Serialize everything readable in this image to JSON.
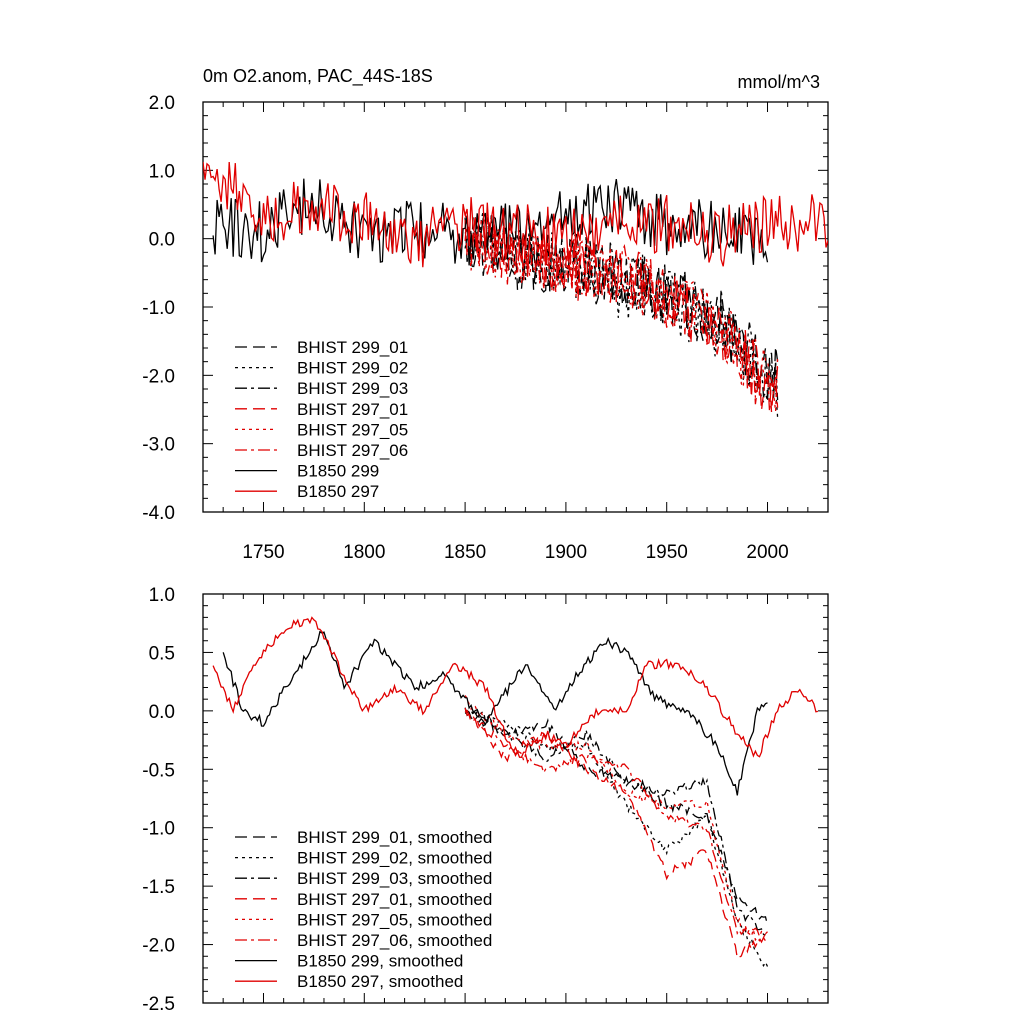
{
  "chart_data": [
    {
      "type": "line",
      "title": "0m O2.anom, PAC_44S-18S",
      "units": "mmol/m^3",
      "xlim": [
        1720,
        2030
      ],
      "ylim": [
        -4.0,
        2.0
      ],
      "xticks": [
        1750,
        1800,
        1850,
        1900,
        1950,
        2000
      ],
      "xtick_labels": [
        "1750",
        "1800",
        "1850",
        "1900",
        "1950",
        "2000"
      ],
      "yticks": [
        2.0,
        1.0,
        0.0,
        -1.0,
        -2.0,
        -3.0,
        -4.0
      ],
      "ytick_labels": [
        "2.0",
        "1.0",
        "0.0",
        "-1.0",
        "-2.0",
        "-3.0",
        "-4.0"
      ],
      "legend_position": "bottom-left",
      "grid": false,
      "series": [
        {
          "name": "BHIST 299_01",
          "color": "#000000",
          "dash": "dash",
          "years": [
            1850,
            1875,
            1900,
            1925,
            1950,
            1975,
            1990,
            2005
          ],
          "values": [
            0.0,
            -0.3,
            -0.4,
            -0.6,
            -0.8,
            -1.2,
            -1.7,
            -2.0
          ]
        },
        {
          "name": "BHIST 299_02",
          "color": "#000000",
          "dash": "dot",
          "years": [
            1850,
            1875,
            1900,
            1925,
            1950,
            1975,
            1990,
            2005
          ],
          "values": [
            0.1,
            -0.2,
            -0.4,
            -0.7,
            -0.9,
            -1.3,
            -1.8,
            -2.2
          ]
        },
        {
          "name": "BHIST 299_03",
          "color": "#000000",
          "dash": "dashdot",
          "years": [
            1850,
            1875,
            1900,
            1925,
            1950,
            1975,
            1990,
            2005
          ],
          "values": [
            0.0,
            -0.2,
            -0.3,
            -0.5,
            -0.8,
            -1.1,
            -1.6,
            -2.1
          ]
        },
        {
          "name": "BHIST 297_01",
          "color": "#e00000",
          "dash": "dash",
          "years": [
            1850,
            1875,
            1900,
            1925,
            1950,
            1975,
            1990,
            2005
          ],
          "values": [
            0.1,
            -0.3,
            -0.5,
            -0.6,
            -0.9,
            -1.3,
            -1.9,
            -2.3
          ]
        },
        {
          "name": "BHIST 297_05",
          "color": "#e00000",
          "dash": "dot",
          "years": [
            1850,
            1875,
            1900,
            1925,
            1950,
            1975,
            1990,
            2005
          ],
          "values": [
            0.0,
            -0.2,
            -0.4,
            -0.6,
            -0.8,
            -1.2,
            -1.8,
            -2.1
          ]
        },
        {
          "name": "BHIST 297_06",
          "color": "#e00000",
          "dash": "dashdot",
          "years": [
            1850,
            1875,
            1900,
            1925,
            1950,
            1975,
            1990,
            2005
          ],
          "values": [
            0.0,
            -0.2,
            -0.4,
            -0.5,
            -0.8,
            -1.3,
            -1.8,
            -2.2
          ]
        },
        {
          "name": "B1850 299",
          "color": "#000000",
          "dash": "solid",
          "years": [
            1725,
            1750,
            1775,
            1800,
            1825,
            1850,
            1875,
            1900,
            1925,
            1950,
            1975,
            2000
          ],
          "values": [
            0.2,
            0.1,
            0.6,
            0.0,
            0.2,
            0.0,
            0.1,
            0.3,
            0.5,
            0.2,
            0.1,
            0.0
          ]
        },
        {
          "name": "B1850 297",
          "color": "#e00000",
          "dash": "solid",
          "years": [
            1720,
            1750,
            1775,
            1800,
            1825,
            1850,
            1875,
            1900,
            1925,
            1950,
            1975,
            2000,
            2030
          ],
          "values": [
            1.2,
            0.3,
            0.5,
            0.3,
            0.0,
            0.2,
            0.1,
            0.0,
            0.3,
            0.2,
            0.0,
            0.2,
            0.3
          ]
        }
      ]
    },
    {
      "type": "line",
      "xlim": [
        1720,
        2030
      ],
      "ylim": [
        -2.5,
        1.0
      ],
      "yticks": [
        1.0,
        0.5,
        0.0,
        -0.5,
        -1.0,
        -1.5,
        -2.0,
        -2.5
      ],
      "ytick_labels": [
        "1.0",
        "0.5",
        "0.0",
        "-0.5",
        "-1.0",
        "-1.5",
        "-2.0",
        "-2.5"
      ],
      "legend_position": "bottom-left",
      "grid": false,
      "series": [
        {
          "name": "BHIST 299_01, smoothed",
          "color": "#000000",
          "dash": "dash",
          "years": [
            1850,
            1870,
            1890,
            1910,
            1930,
            1950,
            1970,
            1985,
            2000
          ],
          "values": [
            0.0,
            -0.2,
            -0.1,
            -0.5,
            -0.6,
            -0.8,
            -0.9,
            -1.6,
            -1.8
          ]
        },
        {
          "name": "BHIST 299_02, smoothed",
          "color": "#000000",
          "dash": "dot",
          "years": [
            1850,
            1870,
            1890,
            1910,
            1930,
            1950,
            1970,
            1985,
            2000
          ],
          "values": [
            0.0,
            -0.1,
            -0.3,
            -0.3,
            -0.8,
            -1.2,
            -0.9,
            -1.8,
            -2.2
          ]
        },
        {
          "name": "BHIST 299_03, smoothed",
          "color": "#000000",
          "dash": "dashdot",
          "years": [
            1850,
            1870,
            1890,
            1910,
            1930,
            1950,
            1970,
            1985,
            2000
          ],
          "values": [
            0.0,
            -0.2,
            -0.4,
            -0.2,
            -0.6,
            -0.7,
            -0.6,
            -1.7,
            -1.9
          ]
        },
        {
          "name": "BHIST 297_01, smoothed",
          "color": "#e00000",
          "dash": "dash",
          "years": [
            1850,
            1870,
            1890,
            1910,
            1930,
            1950,
            1970,
            1985,
            2000
          ],
          "values": [
            0.0,
            -0.4,
            -0.2,
            -0.5,
            -0.7,
            -1.4,
            -1.2,
            -2.1,
            -1.9
          ]
        },
        {
          "name": "BHIST 297_05, smoothed",
          "color": "#e00000",
          "dash": "dot",
          "years": [
            1850,
            1870,
            1890,
            1910,
            1930,
            1950,
            1970,
            1985,
            2000
          ],
          "values": [
            0.1,
            -0.2,
            -0.3,
            -0.3,
            -0.7,
            -0.8,
            -0.8,
            -1.8,
            -2.0
          ]
        },
        {
          "name": "BHIST 297_06, smoothed",
          "color": "#e00000",
          "dash": "dashdot",
          "years": [
            1850,
            1870,
            1890,
            1910,
            1930,
            1950,
            1970,
            1985,
            2000
          ],
          "values": [
            0.0,
            -0.3,
            -0.5,
            -0.4,
            -0.5,
            -0.9,
            -1.0,
            -1.9,
            -1.9
          ]
        },
        {
          "name": "B1850 299, smoothed",
          "color": "#000000",
          "dash": "solid",
          "years": [
            1730,
            1740,
            1750,
            1765,
            1780,
            1790,
            1805,
            1825,
            1840,
            1860,
            1880,
            1895,
            1905,
            1920,
            1930,
            1945,
            1960,
            1975,
            1985,
            1995,
            2000
          ],
          "values": [
            0.5,
            0.0,
            -0.1,
            0.3,
            0.7,
            0.2,
            0.6,
            0.2,
            0.3,
            -0.1,
            0.4,
            0.0,
            0.3,
            0.6,
            0.5,
            0.1,
            0.0,
            -0.3,
            -0.7,
            0.0,
            0.1
          ]
        },
        {
          "name": "B1850 297, smoothed",
          "color": "#e00000",
          "dash": "solid",
          "years": [
            1725,
            1735,
            1745,
            1760,
            1775,
            1790,
            1800,
            1815,
            1830,
            1845,
            1860,
            1875,
            1890,
            1900,
            1915,
            1930,
            1940,
            1955,
            1970,
            1985,
            1995,
            2005,
            2015,
            2025
          ],
          "values": [
            0.4,
            0.0,
            0.4,
            0.7,
            0.8,
            0.3,
            0.0,
            0.2,
            0.0,
            0.4,
            0.2,
            -0.4,
            -0.2,
            -0.3,
            0.0,
            0.0,
            0.4,
            0.4,
            0.2,
            -0.2,
            -0.4,
            0.0,
            0.2,
            0.0
          ]
        }
      ]
    }
  ]
}
